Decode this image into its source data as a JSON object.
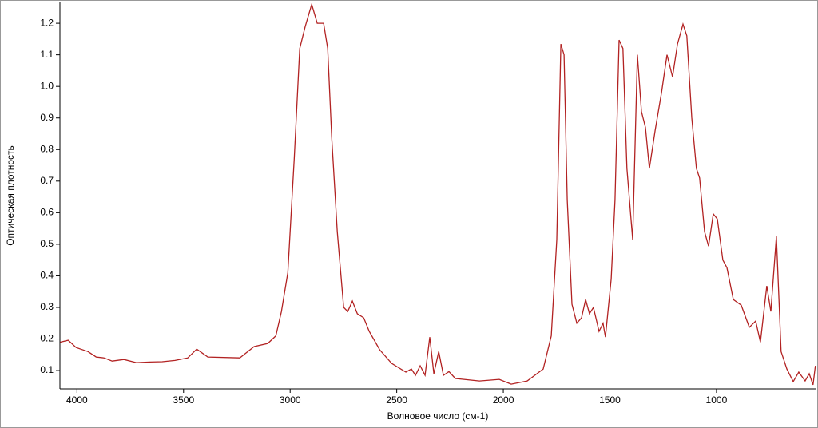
{
  "chart_data": {
    "type": "line",
    "x_label": "Волновое число (см-1)",
    "y_label": "Оптическая плотность",
    "xlim": [
      4080,
      535
    ],
    "ylim": [
      0.042,
      1.266
    ],
    "xticks": [
      4000,
      3500,
      3000,
      2500,
      2000,
      1500,
      1000
    ],
    "yticks": [
      0.1,
      0.2,
      0.3,
      0.4,
      0.5,
      0.6,
      0.7,
      0.8,
      0.9,
      {
        "value": 1,
        "label": "1.0"
      },
      1.1,
      1.2
    ],
    "x": [
      4079,
      4041,
      4004,
      3948,
      3910,
      3873,
      3835,
      3780,
      3720,
      3660,
      3600,
      3540,
      3480,
      3438,
      3386,
      3236,
      3169,
      3105,
      3067,
      3041,
      3011,
      2981,
      2955,
      2929,
      2899,
      2873,
      2843,
      2824,
      2805,
      2779,
      2749,
      2730,
      2708,
      2685,
      2655,
      2629,
      2580,
      2524,
      2457,
      2431,
      2412,
      2390,
      2367,
      2345,
      2326,
      2303,
      2281,
      2255,
      2225,
      2112,
      2019,
      1963,
      1888,
      1813,
      1775,
      1749,
      1730,
      1715,
      1700,
      1678,
      1655,
      1633,
      1614,
      1596,
      1577,
      1551,
      1532,
      1521,
      1494,
      1476,
      1457,
      1439,
      1420,
      1393,
      1371,
      1352,
      1333,
      1315,
      1288,
      1258,
      1232,
      1206,
      1183,
      1157,
      1139,
      1116,
      1094,
      1079,
      1056,
      1037,
      1015,
      996,
      970,
      951,
      921,
      884,
      846,
      816,
      794,
      764,
      745,
      719,
      697,
      670,
      640,
      614,
      584,
      565,
      547,
      536
    ],
    "series": [
      {
        "color": "#b22222",
        "values": [
          0.19,
          0.196,
          0.173,
          0.16,
          0.143,
          0.14,
          0.13,
          0.135,
          0.125,
          0.127,
          0.128,
          0.132,
          0.14,
          0.168,
          0.143,
          0.14,
          0.176,
          0.186,
          0.21,
          0.287,
          0.41,
          0.77,
          1.12,
          1.19,
          1.26,
          1.2,
          1.2,
          1.12,
          0.84,
          0.54,
          0.3,
          0.287,
          0.32,
          0.28,
          0.267,
          0.224,
          0.166,
          0.123,
          0.095,
          0.105,
          0.085,
          0.115,
          0.085,
          0.206,
          0.09,
          0.16,
          0.085,
          0.097,
          0.075,
          0.067,
          0.072,
          0.057,
          0.067,
          0.105,
          0.21,
          0.515,
          1.134,
          1.1,
          0.64,
          0.31,
          0.25,
          0.267,
          0.325,
          0.28,
          0.3,
          0.224,
          0.25,
          0.206,
          0.39,
          0.64,
          1.147,
          1.12,
          0.74,
          0.515,
          1.1,
          0.92,
          0.87,
          0.74,
          0.86,
          0.98,
          1.1,
          1.03,
          1.134,
          1.197,
          1.16,
          0.9,
          0.74,
          0.71,
          0.54,
          0.494,
          0.596,
          0.58,
          0.45,
          0.426,
          0.325,
          0.307,
          0.237,
          0.257,
          0.19,
          0.368,
          0.287,
          0.525,
          0.16,
          0.105,
          0.065,
          0.095,
          0.067,
          0.09,
          0.055,
          0.115
        ]
      }
    ]
  }
}
